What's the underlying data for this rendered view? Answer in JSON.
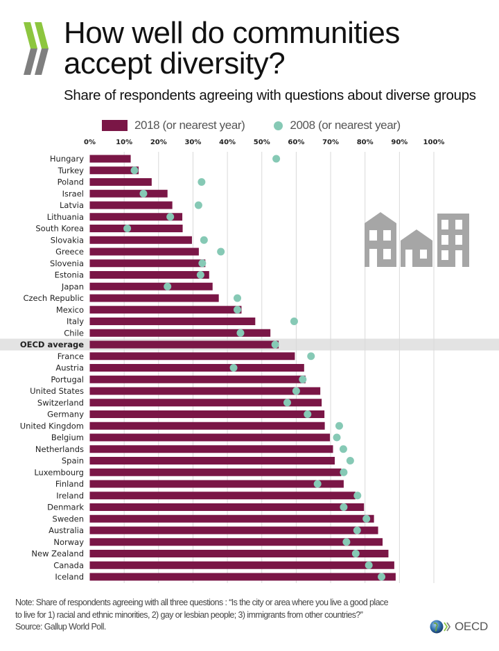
{
  "header": {
    "title_line1": "How well do communities",
    "title_line2": "accept diversity?",
    "subtitle": "Share of respondents agreeing with questions about diverse groups"
  },
  "legend": {
    "series_2018": "2018 (or nearest year)",
    "series_2008": "2008 (or nearest year)"
  },
  "colors": {
    "bar_2018": "#7a1646",
    "dot_2008": "#86c9b5",
    "highlight_band": "#e3e3e3",
    "gridline": "#d9d9d9",
    "logo_green": "#8dc63f",
    "logo_gray": "#7f7f7f"
  },
  "chart_data": {
    "type": "bar",
    "orientation": "horizontal",
    "title": "Share of respondents agreeing with questions about diverse groups",
    "xlabel": "",
    "ylabel": "",
    "xlim": [
      0,
      100
    ],
    "x_ticks": [
      "0%",
      "10%",
      "20%",
      "30%",
      "40%",
      "50%",
      "60%",
      "70%",
      "80%",
      "90%",
      "100%"
    ],
    "grid": true,
    "legend_position": "top",
    "highlight_category": "OECD average",
    "categories": [
      "Hungary",
      "Turkey",
      "Poland",
      "Israel",
      "Latvia",
      "Lithuania",
      "South Korea",
      "Slovakia",
      "Greece",
      "Slovenia",
      "Estonia",
      "Japan",
      "Czech Republic",
      "Mexico",
      "Italy",
      "Chile",
      "OECD average",
      "France",
      "Austria",
      "Portugal",
      "United States",
      "Switzerland",
      "Germany",
      "United Kingdom",
      "Belgium",
      "Netherlands",
      "Spain",
      "Luxembourg",
      "Finland",
      "Ireland",
      "Denmark",
      "Sweden",
      "Australia",
      "Norway",
      "New Zealand",
      "Canada",
      "Iceland"
    ],
    "series": [
      {
        "name": "2018 (or nearest year)",
        "type": "bar",
        "values": [
          11.9,
          14.2,
          18.0,
          22.6,
          24.0,
          26.9,
          27.0,
          29.7,
          31.7,
          33.6,
          34.7,
          35.7,
          37.5,
          44.1,
          48.1,
          52.5,
          54.9,
          59.6,
          62.3,
          62.7,
          67.0,
          67.4,
          68.2,
          68.3,
          69.8,
          70.7,
          71.2,
          73.1,
          73.8,
          77.2,
          79.7,
          82.6,
          83.8,
          85.1,
          86.8,
          88.5,
          88.9
        ]
      },
      {
        "name": "2008 (or nearest year)",
        "type": "scatter",
        "values": [
          54.2,
          13.0,
          32.5,
          15.6,
          31.6,
          23.4,
          10.9,
          33.2,
          38.1,
          32.7,
          32.2,
          22.6,
          42.9,
          42.9,
          59.4,
          43.8,
          53.9,
          64.3,
          41.8,
          61.9,
          60.0,
          57.4,
          63.3,
          72.5,
          71.8,
          73.7,
          75.7,
          73.8,
          66.2,
          77.8,
          73.8,
          80.4,
          77.7,
          74.6,
          77.3,
          81.1,
          84.8
        ]
      }
    ]
  },
  "footer": {
    "note_line1": "Note: Share of respondents agreeing with all three questions : “Is the city or area where you live a good place",
    "note_line2": "to live for 1) racial and ethnic minorities, 2) gay or lesbian people; 3) immigrants from other countries?”",
    "source": "Source: Gallup World Poll.",
    "brand": "OECD"
  }
}
